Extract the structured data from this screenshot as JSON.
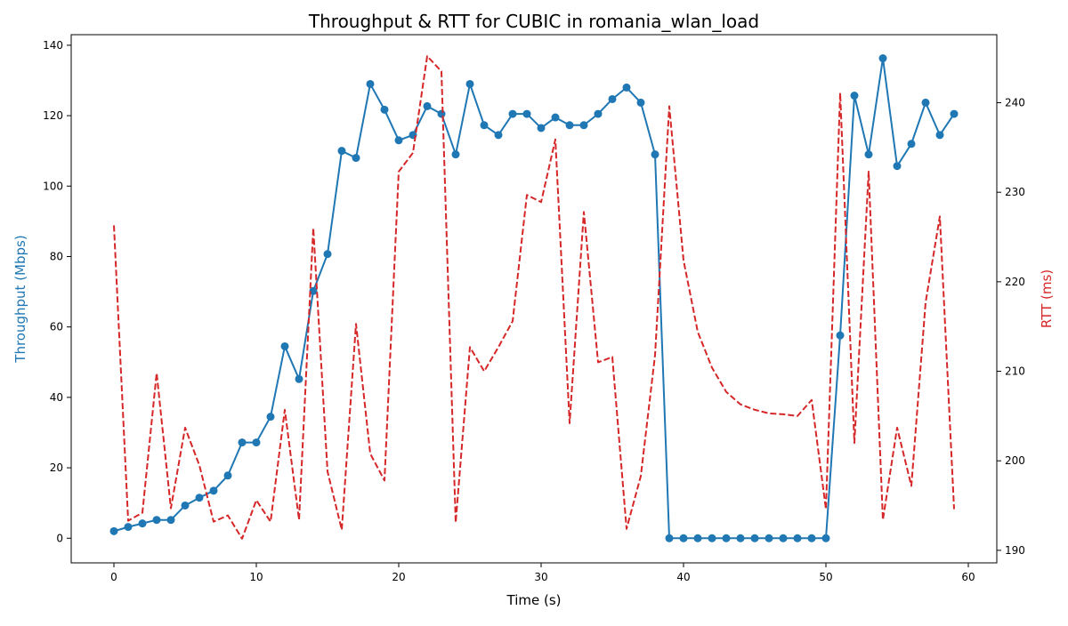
{
  "chart_data": {
    "type": "line",
    "title": "Throughput & RTT for CUBIC in romania_wlan_load",
    "xlabel": "Time (s)",
    "ylabel_left": "Throughput (Mbps)",
    "ylabel_right": "RTT (ms)",
    "xlim": [
      -3,
      62
    ],
    "ylim_left": [
      -7,
      143
    ],
    "ylim_right": [
      188.6,
      247.6
    ],
    "x_ticks": [
      0,
      10,
      20,
      30,
      40,
      50,
      60
    ],
    "y_left_ticks": [
      0,
      20,
      40,
      60,
      80,
      100,
      120,
      140
    ],
    "y_right_ticks": [
      190,
      200,
      210,
      220,
      230,
      240
    ],
    "grid": false,
    "legend": "none",
    "series": [
      {
        "axis": "left",
        "color": "#1f77b4",
        "style": "solid",
        "marker": "circle",
        "x": [
          0,
          1,
          2,
          3,
          4,
          5,
          6,
          7,
          8,
          9,
          10,
          11,
          12,
          13,
          14,
          15,
          16,
          17,
          18,
          19,
          20,
          21,
          22,
          23,
          24,
          25,
          26,
          27,
          28,
          29,
          30,
          31,
          32,
          33,
          34,
          35,
          36,
          37,
          38,
          39,
          40,
          41,
          42,
          43,
          44,
          45,
          46,
          47,
          48,
          49,
          50,
          51,
          52,
          53,
          54,
          55,
          56,
          57,
          58,
          59
        ],
        "values": [
          2,
          3.2,
          4.2,
          5.2,
          5.2,
          9.3,
          11.5,
          13.5,
          17.8,
          27.2,
          27.2,
          34.5,
          54.5,
          45.2,
          70.2,
          80.7,
          110,
          108,
          129,
          121.7,
          113,
          114.5,
          122.7,
          120.5,
          109,
          129,
          117.3,
          114.5,
          120.5,
          120.5,
          116.5,
          119.5,
          117.3,
          117.3,
          120.5,
          124.7,
          128,
          123.7,
          109,
          0,
          0,
          0,
          0,
          0,
          0,
          0,
          0,
          0,
          0,
          0,
          0,
          57.6,
          125.7,
          109,
          136.3,
          105.7,
          112,
          123.7,
          114.5,
          120.5
        ]
      },
      {
        "axis": "right",
        "color": "#d62728",
        "style": "dashed",
        "marker": "none",
        "x": [
          0,
          1,
          2,
          3,
          4,
          5,
          6,
          7,
          8,
          9,
          10,
          11,
          12,
          13,
          14,
          15,
          16,
          17,
          18,
          19,
          20,
          21,
          22,
          23,
          24,
          25,
          26,
          27,
          28,
          29,
          30,
          31,
          32,
          33,
          34,
          35,
          36,
          37,
          38,
          39,
          40,
          41,
          42,
          43,
          44,
          45,
          46,
          47,
          48,
          49,
          50,
          51,
          52,
          53,
          54,
          55,
          56,
          57,
          58,
          59
        ],
        "values": [
          226.3,
          193.3,
          194.2,
          209.8,
          194.7,
          203.7,
          199.5,
          193.2,
          193.9,
          191.3,
          195.6,
          193.2,
          205.7,
          193.4,
          226,
          198.8,
          192.3,
          215.3,
          200.8,
          197.8,
          232.3,
          234.4,
          245.2,
          243.5,
          193.1,
          212.7,
          210,
          212.7,
          215.6,
          229.7,
          228.9,
          235.9,
          204.2,
          227.8,
          211,
          211.6,
          192.4,
          198.3,
          211.8,
          239.6,
          222.4,
          214.4,
          210.4,
          207.7,
          206.3,
          205.7,
          205.3,
          205.2,
          205,
          206.8,
          194.6,
          241.1,
          202,
          232.3,
          193.4,
          203.7,
          197.2,
          217.7,
          227.3,
          194.6
        ]
      }
    ]
  }
}
